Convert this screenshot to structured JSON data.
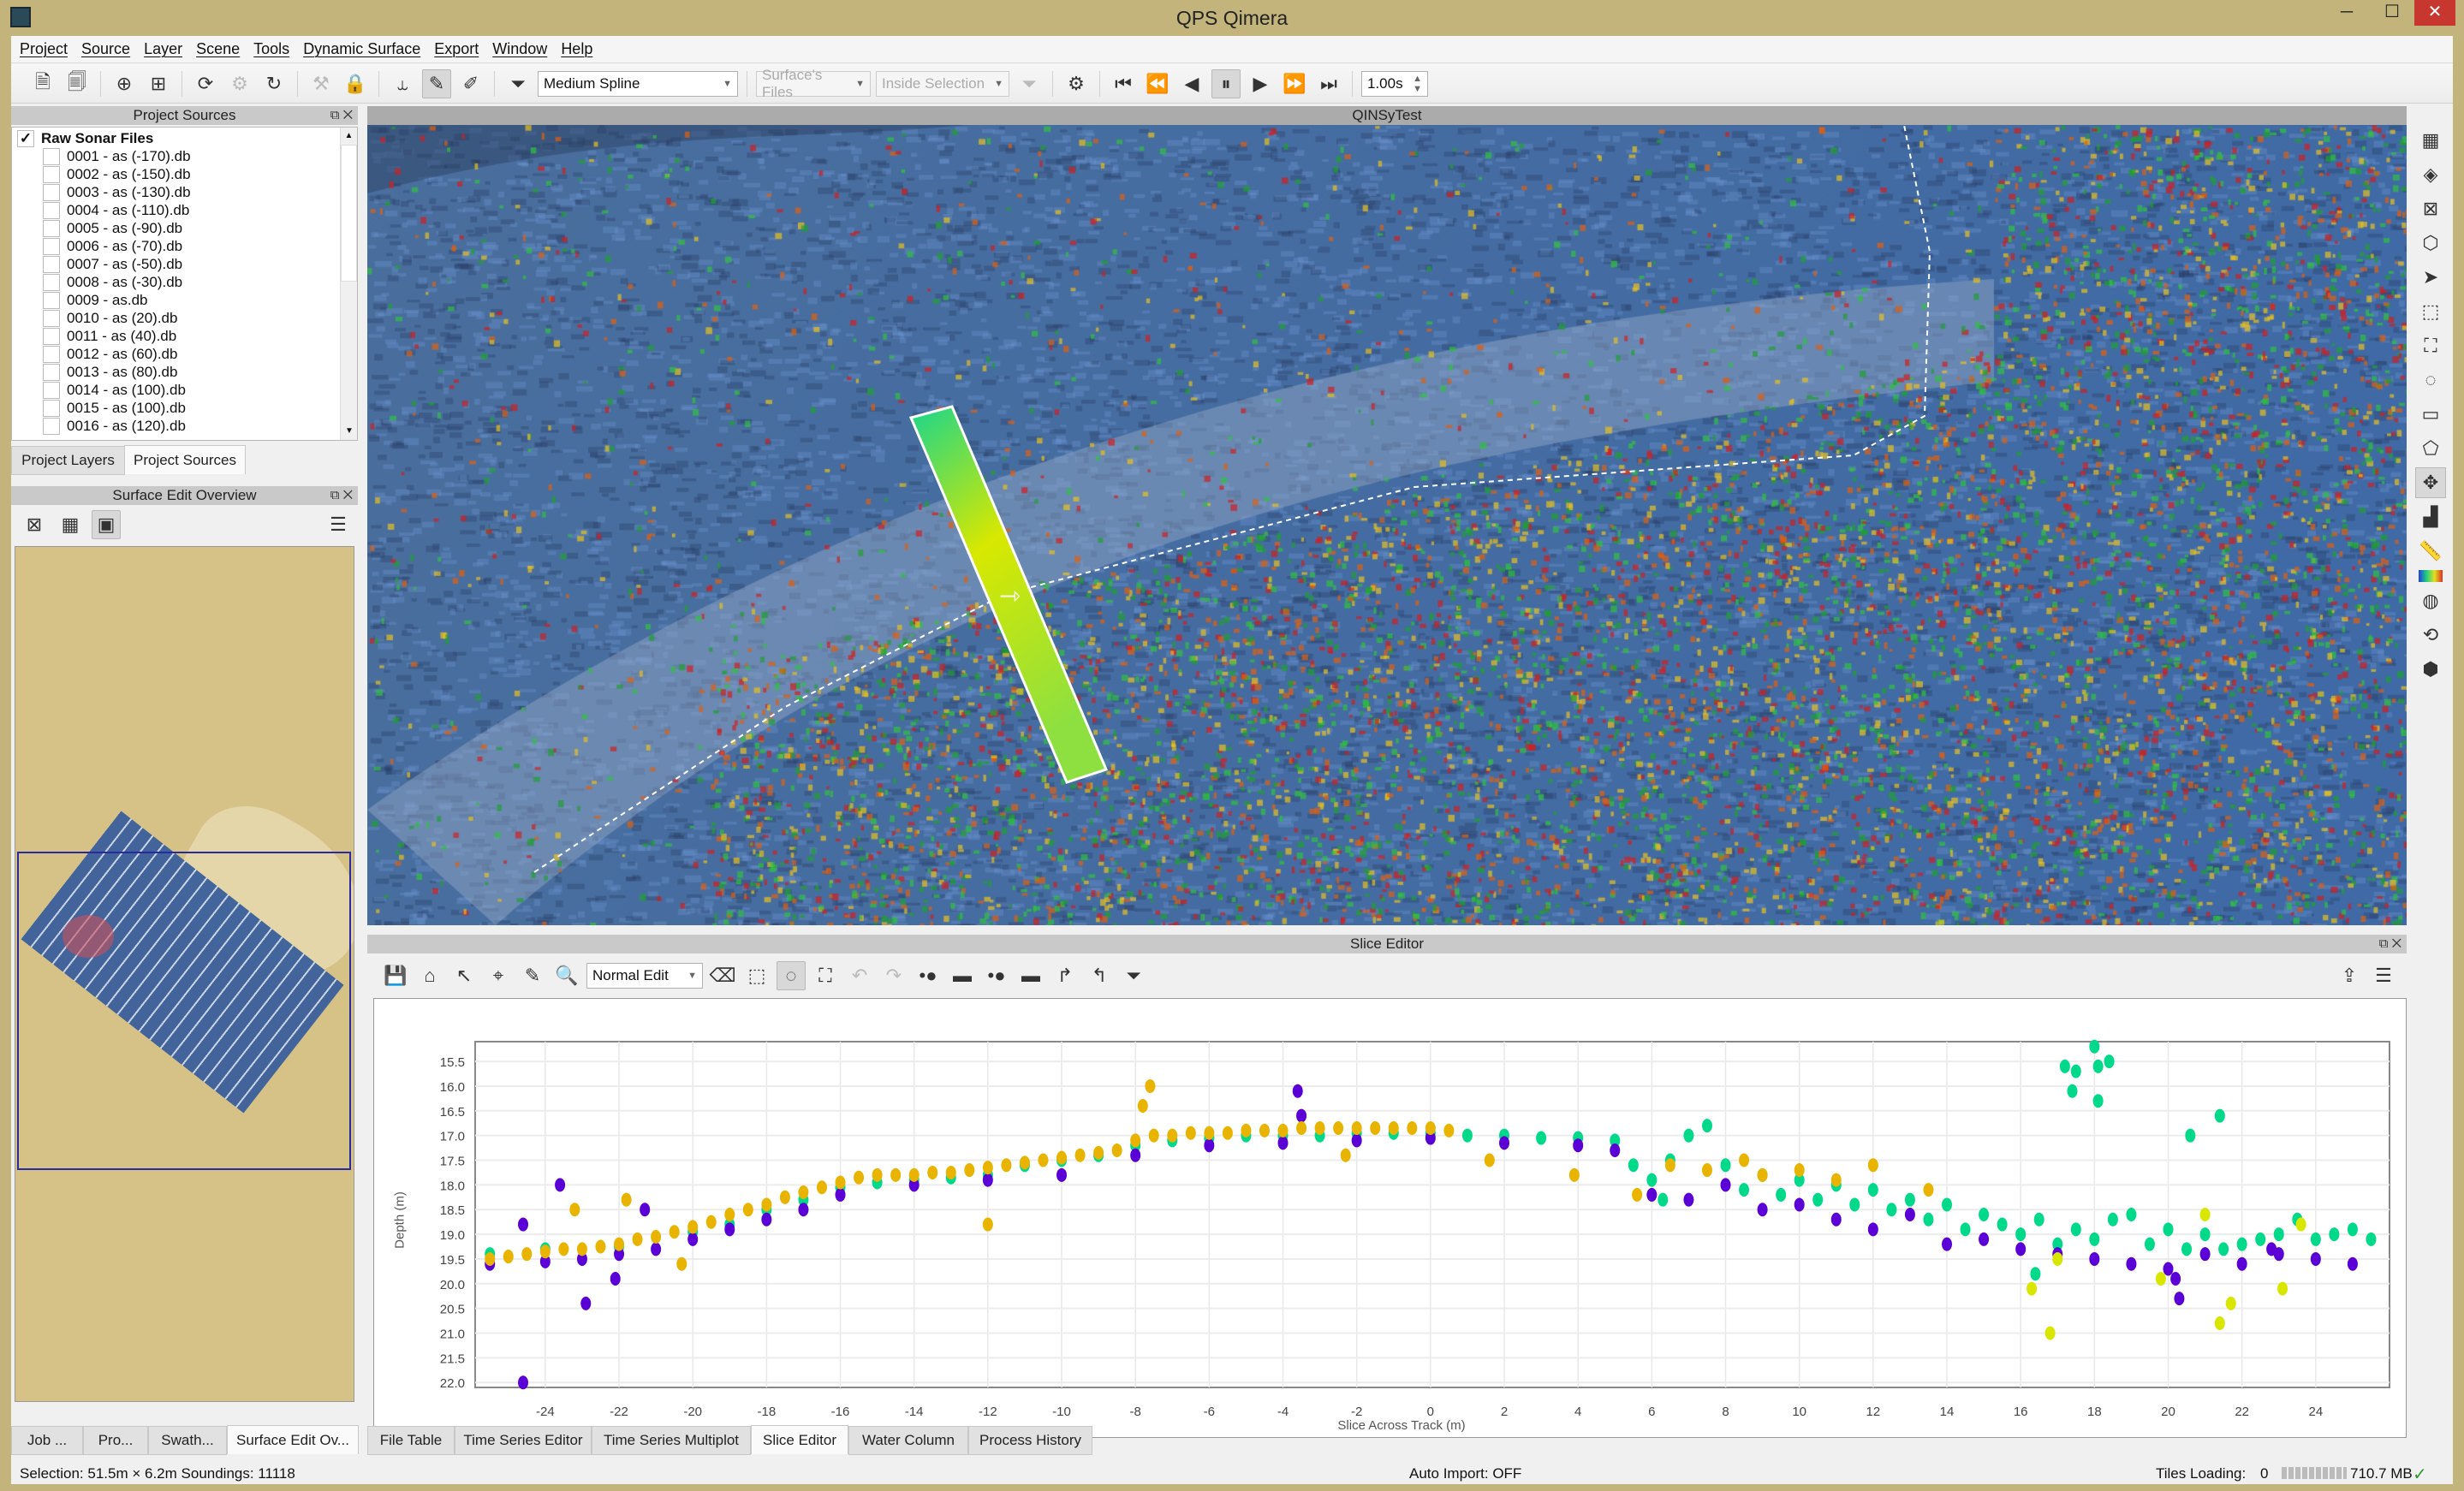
{
  "window": {
    "title": "QPS Qimera"
  },
  "menu": [
    "Project",
    "Source",
    "Layer",
    "Scene",
    "Tools",
    "Dynamic Surface",
    "Export",
    "Window",
    "Help"
  ],
  "toolbar": {
    "surface_filter": "Medium Spline",
    "file_scope": "Surface's Files",
    "selection_scope": "Inside Selection",
    "playback_interval": "1.00s"
  },
  "project_sources": {
    "title": "Project Sources",
    "group": {
      "label": "Raw Sonar Files",
      "checked": true
    },
    "files": [
      "0001 - as (-170).db",
      "0002 - as (-150).db",
      "0003 - as (-130).db",
      "0004 - as (-110).db",
      "0005 - as (-90).db",
      "0006 - as (-70).db",
      "0007 - as (-50).db",
      "0008 - as (-30).db",
      "0009 - as.db",
      "0010 - as (20).db",
      "0011 - as (40).db",
      "0012 - as (60).db",
      "0013 - as (80).db",
      "0014 - as (100).db",
      "0015 - as (100).db",
      "0016 - as (120).db"
    ],
    "tabs": [
      "Project Layers",
      "Project Sources"
    ],
    "active_tab": "Project Sources"
  },
  "surface_edit_overview": {
    "title": "Surface Edit Overview"
  },
  "left_bottom_tabs": [
    "Job ...",
    "Pro...",
    "Swath...",
    "Surface Edit Ov..."
  ],
  "map_view": {
    "title": "QINSyTest"
  },
  "slice_editor": {
    "title": "Slice Editor",
    "edit_mode": "Normal Edit"
  },
  "bottom_tabs": [
    "File Table",
    "Time Series Editor",
    "Time Series Multiplot",
    "Slice Editor",
    "Water Column",
    "Process History"
  ],
  "active_bottom_tab": "Slice Editor",
  "status": {
    "selection": "Selection: 51.5m × 6.2m  Soundings: 11118",
    "auto_import": "Auto Import: OFF",
    "tiles_loading_label": "Tiles Loading:",
    "tiles_loading_value": "0",
    "memory": "710.7 MB"
  },
  "colors": {
    "purple": "#5a00d6",
    "green": "#00d98a",
    "orange": "#e8b400",
    "yellow": "#d8e600",
    "window_frame": "#c2b47a"
  },
  "chart_data": {
    "type": "scatter",
    "xlabel": "Slice Across Track (m)",
    "ylabel": "Depth (m)",
    "xlim": [
      -25.9,
      26.0
    ],
    "ylim": [
      15.1,
      22.1
    ],
    "y_inverted": true,
    "grid": true,
    "xticks": [
      -24,
      -22,
      -20,
      -18,
      -16,
      -14,
      -12,
      -10,
      -8,
      -6,
      -4,
      -2,
      0,
      2,
      4,
      6,
      8,
      10,
      12,
      14,
      16,
      18,
      20,
      22,
      24
    ],
    "yticks": [
      "15.5",
      "16.0",
      "16.5",
      "17.0",
      "17.5",
      "18.0",
      "18.5",
      "19.0",
      "19.5",
      "20.0",
      "20.5",
      "21.0",
      "21.5",
      "22.0"
    ],
    "series": [
      {
        "color": "#5a00d6",
        "points": [
          [
            -25.5,
            19.6
          ],
          [
            -24,
            19.55
          ],
          [
            -23,
            19.5
          ],
          [
            -22,
            19.4
          ],
          [
            -21,
            19.3
          ],
          [
            -20,
            19.1
          ],
          [
            -19,
            18.9
          ],
          [
            -18,
            18.7
          ],
          [
            -17,
            18.5
          ],
          [
            -16,
            18.2
          ],
          [
            -14,
            18.0
          ],
          [
            -12,
            17.9
          ],
          [
            -10,
            17.8
          ],
          [
            -8,
            17.4
          ],
          [
            -6,
            17.2
          ],
          [
            -4,
            17.15
          ],
          [
            -2,
            17.1
          ],
          [
            0,
            17.05
          ],
          [
            2,
            17.15
          ],
          [
            4,
            17.2
          ],
          [
            5,
            17.3
          ],
          [
            6,
            18.2
          ],
          [
            7,
            18.3
          ],
          [
            8,
            18.0
          ],
          [
            9,
            18.5
          ],
          [
            10,
            18.4
          ],
          [
            11,
            18.7
          ],
          [
            12,
            18.9
          ],
          [
            13,
            18.6
          ],
          [
            14,
            19.2
          ],
          [
            15,
            19.1
          ],
          [
            16,
            19.3
          ],
          [
            17,
            19.4
          ],
          [
            18,
            19.5
          ],
          [
            19,
            19.6
          ],
          [
            20,
            19.7
          ],
          [
            21,
            19.4
          ],
          [
            22,
            19.6
          ],
          [
            23,
            19.4
          ],
          [
            24,
            19.5
          ],
          [
            25,
            19.6
          ],
          [
            -24.6,
            22.0
          ],
          [
            -24.6,
            18.8
          ],
          [
            -23.6,
            18.0
          ],
          [
            -22.9,
            20.4
          ],
          [
            -22.1,
            19.9
          ],
          [
            -21.3,
            18.5
          ],
          [
            -3.6,
            16.1
          ],
          [
            -3.5,
            16.6
          ],
          [
            20.3,
            20.3
          ],
          [
            20.2,
            19.9
          ],
          [
            22.8,
            19.3
          ]
        ]
      },
      {
        "color": "#00d98a",
        "points": [
          [
            -25.5,
            19.4
          ],
          [
            -24,
            19.3
          ],
          [
            -22,
            19.25
          ],
          [
            -20,
            18.95
          ],
          [
            -19,
            18.8
          ],
          [
            -18,
            18.5
          ],
          [
            -17,
            18.3
          ],
          [
            -16,
            18.05
          ],
          [
            -15,
            17.95
          ],
          [
            -14,
            17.9
          ],
          [
            -13,
            17.85
          ],
          [
            -12,
            17.8
          ],
          [
            -11,
            17.6
          ],
          [
            -10,
            17.5
          ],
          [
            -9,
            17.4
          ],
          [
            -8,
            17.2
          ],
          [
            -7,
            17.1
          ],
          [
            -6,
            17.05
          ],
          [
            -5,
            17.0
          ],
          [
            -4,
            17.0
          ],
          [
            -3,
            17.0
          ],
          [
            -2,
            16.95
          ],
          [
            -1,
            16.95
          ],
          [
            0,
            16.95
          ],
          [
            1,
            17.0
          ],
          [
            2,
            17.0
          ],
          [
            3,
            17.05
          ],
          [
            4,
            17.05
          ],
          [
            5,
            17.1
          ],
          [
            5.5,
            17.6
          ],
          [
            6,
            17.9
          ],
          [
            6.5,
            17.5
          ],
          [
            7,
            17.0
          ],
          [
            7.5,
            16.8
          ],
          [
            8,
            17.6
          ],
          [
            8.5,
            18.1
          ],
          [
            9,
            17.8
          ],
          [
            9.5,
            18.2
          ],
          [
            10,
            17.9
          ],
          [
            10.5,
            18.3
          ],
          [
            11,
            18.0
          ],
          [
            11.5,
            18.4
          ],
          [
            12,
            18.1
          ],
          [
            12.5,
            18.5
          ],
          [
            13,
            18.3
          ],
          [
            13.5,
            18.7
          ],
          [
            14,
            18.4
          ],
          [
            14.5,
            18.9
          ],
          [
            15,
            18.6
          ],
          [
            15.5,
            18.8
          ],
          [
            16,
            19.0
          ],
          [
            16.5,
            18.7
          ],
          [
            17,
            19.2
          ],
          [
            17.5,
            18.9
          ],
          [
            18,
            19.1
          ],
          [
            18.5,
            18.7
          ],
          [
            19,
            18.6
          ],
          [
            19.5,
            19.2
          ],
          [
            20,
            18.9
          ],
          [
            20.5,
            19.3
          ],
          [
            21,
            19.0
          ],
          [
            21.5,
            19.3
          ],
          [
            22,
            19.2
          ],
          [
            22.5,
            19.1
          ],
          [
            23,
            19.0
          ],
          [
            23.5,
            18.7
          ],
          [
            24,
            19.1
          ],
          [
            24.5,
            19.0
          ],
          [
            25,
            18.9
          ],
          [
            25.5,
            19.1
          ],
          [
            17.2,
            15.6
          ],
          [
            17.5,
            15.7
          ],
          [
            18,
            15.2
          ],
          [
            18.1,
            15.6
          ],
          [
            18.4,
            15.5
          ],
          [
            17.4,
            16.1
          ],
          [
            18.1,
            16.3
          ],
          [
            21.4,
            16.6
          ],
          [
            20.6,
            17.0
          ],
          [
            16.4,
            19.8
          ],
          [
            6.3,
            18.3
          ]
        ]
      },
      {
        "color": "#e8b400",
        "points": [
          [
            -25.5,
            19.5
          ],
          [
            -25,
            19.45
          ],
          [
            -24.5,
            19.4
          ],
          [
            -24,
            19.35
          ],
          [
            -23.5,
            19.3
          ],
          [
            -23,
            19.3
          ],
          [
            -22.5,
            19.25
          ],
          [
            -22,
            19.2
          ],
          [
            -21.5,
            19.1
          ],
          [
            -21,
            19.05
          ],
          [
            -20.5,
            18.95
          ],
          [
            -20,
            18.85
          ],
          [
            -19.5,
            18.75
          ],
          [
            -19,
            18.6
          ],
          [
            -18.5,
            18.5
          ],
          [
            -18,
            18.4
          ],
          [
            -17.5,
            18.25
          ],
          [
            -17,
            18.15
          ],
          [
            -16.5,
            18.05
          ],
          [
            -16,
            17.95
          ],
          [
            -15.5,
            17.85
          ],
          [
            -15,
            17.8
          ],
          [
            -14.5,
            17.8
          ],
          [
            -14,
            17.8
          ],
          [
            -13.5,
            17.75
          ],
          [
            -13,
            17.75
          ],
          [
            -12.5,
            17.7
          ],
          [
            -12,
            17.65
          ],
          [
            -11.5,
            17.6
          ],
          [
            -11,
            17.55
          ],
          [
            -10.5,
            17.5
          ],
          [
            -10,
            17.45
          ],
          [
            -9.5,
            17.4
          ],
          [
            -9,
            17.35
          ],
          [
            -8.5,
            17.3
          ],
          [
            -8,
            17.1
          ],
          [
            -7.5,
            17.0
          ],
          [
            -7,
            17.0
          ],
          [
            -6.5,
            16.95
          ],
          [
            -6,
            16.95
          ],
          [
            -5.5,
            16.95
          ],
          [
            -5,
            16.9
          ],
          [
            -4.5,
            16.9
          ],
          [
            -4,
            16.9
          ],
          [
            -3.5,
            16.85
          ],
          [
            -3,
            16.85
          ],
          [
            -2.5,
            16.85
          ],
          [
            -2,
            16.85
          ],
          [
            -1.5,
            16.85
          ],
          [
            -1,
            16.85
          ],
          [
            -0.5,
            16.85
          ],
          [
            0,
            16.85
          ],
          [
            0.5,
            16.9
          ],
          [
            -23.2,
            18.5
          ],
          [
            -21.8,
            18.3
          ],
          [
            -20.3,
            19.6
          ],
          [
            -7.6,
            16.0
          ],
          [
            -7.8,
            16.4
          ],
          [
            -12,
            18.8
          ],
          [
            1.6,
            17.5
          ],
          [
            3.9,
            17.8
          ],
          [
            5.6,
            18.2
          ],
          [
            -2.3,
            17.4
          ],
          [
            6.5,
            17.6
          ],
          [
            7.5,
            17.7
          ],
          [
            8.5,
            17.5
          ],
          [
            9,
            17.8
          ],
          [
            10,
            17.7
          ],
          [
            11,
            17.9
          ],
          [
            12,
            17.6
          ],
          [
            13.5,
            18.1
          ]
        ]
      },
      {
        "color": "#d8e600",
        "points": [
          [
            16.8,
            21.0
          ],
          [
            21.4,
            20.8
          ],
          [
            16.3,
            20.1
          ],
          [
            17,
            19.5
          ],
          [
            21.7,
            20.4
          ],
          [
            23.1,
            20.1
          ],
          [
            19.8,
            19.9
          ],
          [
            21,
            18.6
          ],
          [
            23.6,
            18.8
          ]
        ]
      }
    ]
  }
}
